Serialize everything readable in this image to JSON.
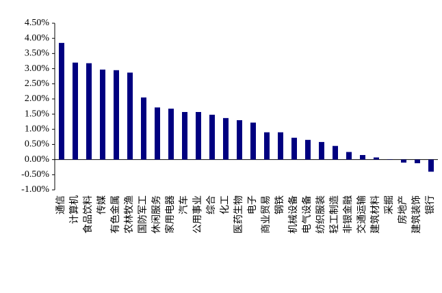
{
  "chart_data": {
    "type": "bar",
    "categories": [
      "通信",
      "计算机",
      "食品饮料",
      "传媒",
      "有色金属",
      "农林牧渔",
      "国防军工",
      "休闲服务",
      "家用电器",
      "汽车",
      "公用事业",
      "综合",
      "化工",
      "医药生物",
      "电子",
      "商业贸易",
      "钢铁",
      "机械设备",
      "电气设备",
      "纺织服装",
      "轻工制造",
      "非银金融",
      "交通运输",
      "建筑材料",
      "采掘",
      "房地产",
      "建筑装饰",
      "银行"
    ],
    "values": [
      3.85,
      3.2,
      3.18,
      2.97,
      2.95,
      2.87,
      2.05,
      1.72,
      1.68,
      1.57,
      1.57,
      1.48,
      1.37,
      1.3,
      1.22,
      0.9,
      0.9,
      0.72,
      0.65,
      0.58,
      0.45,
      0.25,
      0.15,
      0.07,
      0.01,
      -0.1,
      -0.12,
      -0.4
    ],
    "color": "#000080",
    "ylim": [
      -1,
      4.5
    ],
    "yticks": [
      {
        "value": -1,
        "label": "-1.00%"
      },
      {
        "value": -0.5,
        "label": "-0.50%"
      },
      {
        "value": 0,
        "label": "0.00%"
      },
      {
        "value": 0.5,
        "label": "0.50%"
      },
      {
        "value": 1,
        "label": "1.00%"
      },
      {
        "value": 1.5,
        "label": "1.50%"
      },
      {
        "value": 2,
        "label": "2.00%"
      },
      {
        "value": 2.5,
        "label": "2.50%"
      },
      {
        "value": 3,
        "label": "3.00%"
      },
      {
        "value": 3.5,
        "label": "3.50%"
      },
      {
        "value": 4,
        "label": "4.00%"
      },
      {
        "value": 4.5,
        "label": "4.50%"
      }
    ]
  }
}
